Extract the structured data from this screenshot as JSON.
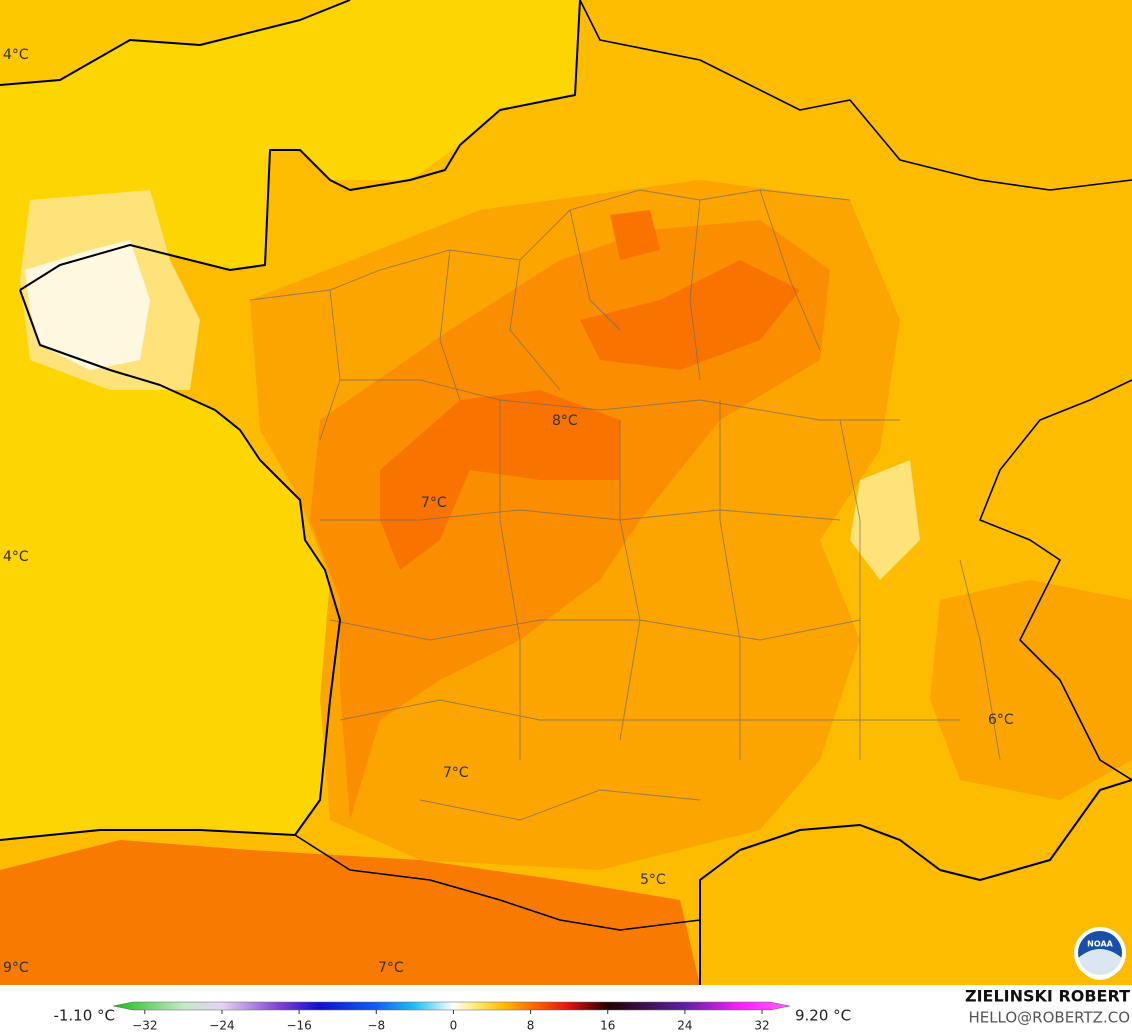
{
  "map_labels": [
    "4°C",
    "4°C",
    "8°C",
    "7°C",
    "6°C",
    "7°C",
    "5°C",
    "9°C",
    "7°C"
  ],
  "colorbar": {
    "min_label": "-1.10 °C",
    "max_label": "9.20 °C",
    "ticks": [
      {
        "value": -32,
        "label": "−32"
      },
      {
        "value": -24,
        "label": "−24"
      },
      {
        "value": -16,
        "label": "−16"
      },
      {
        "value": -8,
        "label": "−8"
      },
      0,
      8,
      16,
      24,
      32
    ],
    "range": [
      -35.3,
      34.9
    ],
    "stops": [
      {
        "value": -35,
        "color": "#1fbf1f"
      },
      {
        "value": -28,
        "color": "#c6e8c6"
      },
      {
        "value": -24,
        "color": "#e4d4f2"
      },
      {
        "value": -18,
        "color": "#8040d0"
      },
      {
        "value": -14,
        "color": "#1010d0"
      },
      {
        "value": -8,
        "color": "#1060f0"
      },
      {
        "value": -4,
        "color": "#20c0f0"
      },
      {
        "value": 0,
        "color": "#ffffff"
      },
      {
        "value": 2,
        "color": "#ffef80"
      },
      {
        "value": 5,
        "color": "#ffc000"
      },
      {
        "value": 8,
        "color": "#ff7000"
      },
      {
        "value": 12,
        "color": "#e01010"
      },
      {
        "value": 16,
        "color": "#200000"
      },
      {
        "value": 24,
        "color": "#6020a0"
      },
      {
        "value": 30,
        "color": "#ff20ff"
      },
      {
        "value": 35,
        "color": "#ff60ff"
      }
    ]
  },
  "credit": {
    "author": "ZIELINSKI ROBERT",
    "email": "HELLO@ROBERTZ.CO",
    "logo": "NOAA"
  }
}
